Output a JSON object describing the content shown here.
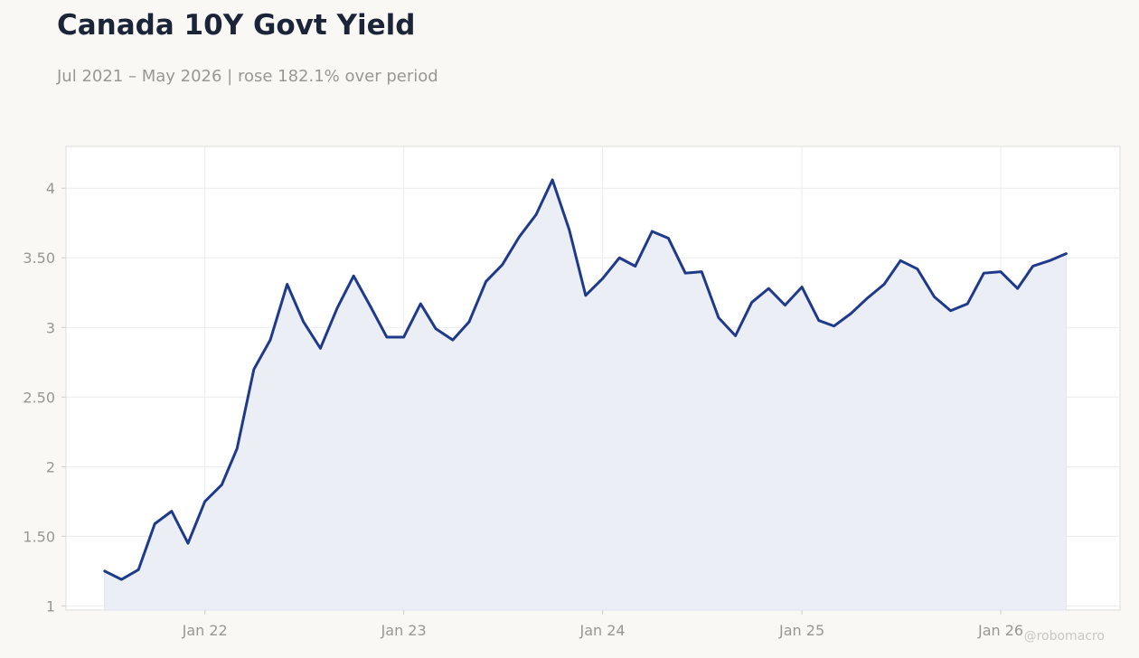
{
  "header": {
    "title": "Canada 10Y Govt Yield",
    "subtitle": "Jul 2021 – May 2026 | rose 182.1% over period"
  },
  "watermark": "@robomacro",
  "colors": {
    "background": "#f9f8f5",
    "plot_background": "#ffffff",
    "line": "#1f3a8a",
    "area_fill": "#eceef6",
    "grid": "#ececec",
    "tick_text": "#9a9793",
    "title_text": "#1c2538"
  },
  "chart_data": {
    "type": "area",
    "title": "Canada 10Y Govt Yield",
    "subtitle": "Jul 2021 – May 2026 | rose 182.1% over period",
    "xlabel": "",
    "ylabel": "",
    "grid": true,
    "legend": "none",
    "xlim": [
      "2021-04-21",
      "2026-08-08"
    ],
    "ylim": [
      0.97,
      4.3
    ],
    "x_ticks": [
      {
        "date": "2022-01-01",
        "label": "Jan 22"
      },
      {
        "date": "2023-01-01",
        "label": "Jan 23"
      },
      {
        "date": "2024-01-01",
        "label": "Jan 24"
      },
      {
        "date": "2025-01-01",
        "label": "Jan 25"
      },
      {
        "date": "2026-01-01",
        "label": "Jan 26"
      }
    ],
    "y_ticks": [
      {
        "value": 1,
        "label": "1"
      },
      {
        "value": 1.5,
        "label": "1.50"
      },
      {
        "value": 2,
        "label": "2"
      },
      {
        "value": 2.5,
        "label": "2.50"
      },
      {
        "value": 3,
        "label": "3"
      },
      {
        "value": 3.5,
        "label": "3.50"
      },
      {
        "value": 4,
        "label": "4"
      }
    ],
    "series": [
      {
        "x": [
          "2021-07-01",
          "2021-08-01",
          "2021-09-01",
          "2021-10-01",
          "2021-11-01",
          "2021-12-01",
          "2022-01-01",
          "2022-02-01",
          "2022-03-01",
          "2022-04-01",
          "2022-05-01",
          "2022-06-01",
          "2022-07-01",
          "2022-08-01",
          "2022-09-01",
          "2022-10-01",
          "2022-11-01",
          "2022-12-01",
          "2023-01-01",
          "2023-02-01",
          "2023-03-01",
          "2023-04-01",
          "2023-05-01",
          "2023-06-01",
          "2023-07-01",
          "2023-08-01",
          "2023-09-01",
          "2023-10-01",
          "2023-11-01",
          "2023-12-01",
          "2024-01-01",
          "2024-02-01",
          "2024-03-01",
          "2024-04-01",
          "2024-05-01",
          "2024-06-01",
          "2024-07-01",
          "2024-08-01",
          "2024-09-01",
          "2024-10-01",
          "2024-11-01",
          "2024-12-01",
          "2025-01-01",
          "2025-02-01",
          "2025-03-01",
          "2025-04-01",
          "2025-05-01",
          "2025-06-01",
          "2025-07-01",
          "2025-08-01",
          "2025-09-01",
          "2025-10-01",
          "2025-11-01",
          "2025-12-01",
          "2026-01-01",
          "2026-02-01",
          "2026-03-01",
          "2026-04-01",
          "2026-05-01"
        ],
        "values": [
          1.25,
          1.19,
          1.26,
          1.59,
          1.68,
          1.45,
          1.75,
          1.87,
          2.13,
          2.7,
          2.91,
          3.31,
          3.04,
          2.85,
          3.14,
          3.37,
          3.15,
          2.93,
          2.93,
          3.17,
          2.99,
          2.91,
          3.04,
          3.33,
          3.45,
          3.65,
          3.81,
          4.06,
          3.7,
          3.23,
          3.35,
          3.5,
          3.44,
          3.69,
          3.64,
          3.39,
          3.4,
          3.07,
          2.94,
          3.18,
          3.28,
          3.16,
          3.29,
          3.05,
          3.01,
          3.1,
          3.21,
          3.31,
          3.48,
          3.42,
          3.22,
          3.12,
          3.17,
          3.39,
          3.4,
          3.28,
          3.44,
          3.48,
          3.53
        ]
      }
    ]
  }
}
